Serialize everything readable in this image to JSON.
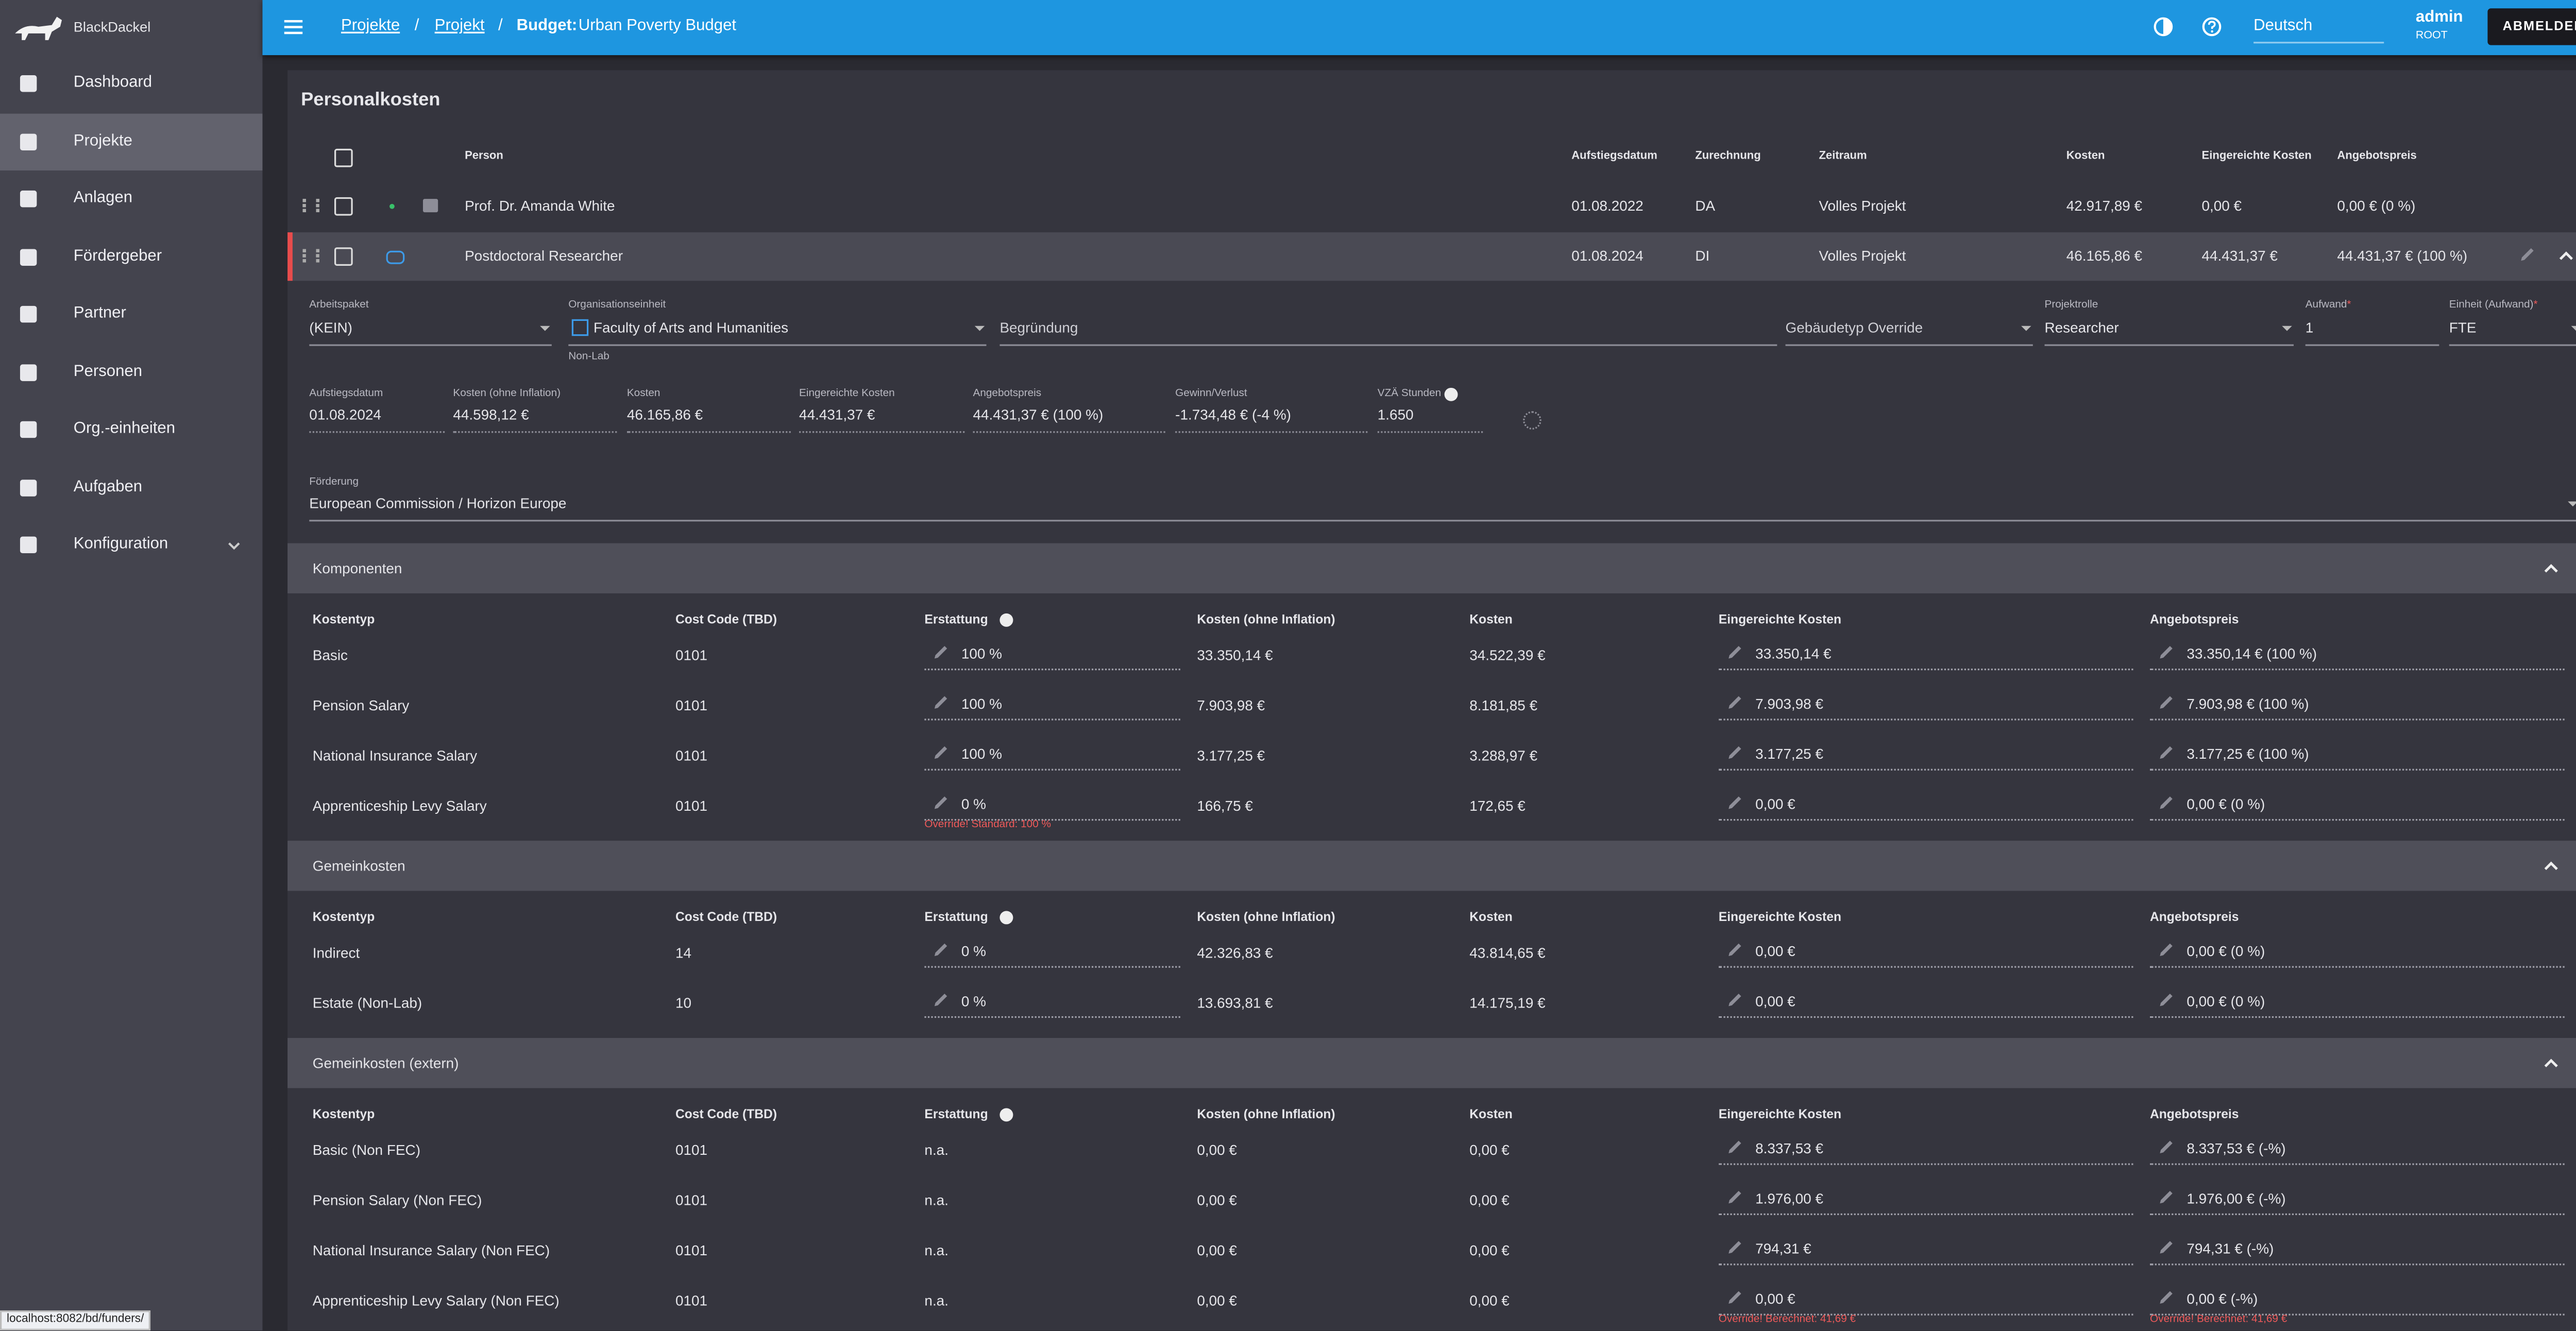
{
  "sidebar": {
    "brand": "BlackDackel",
    "items": [
      "Dashboard",
      "Projekte",
      "Anlagen",
      "Fördergeber",
      "Partner",
      "Personen",
      "Org.-einheiten",
      "Aufgaben",
      "Konfiguration"
    ]
  },
  "topbar": {
    "breadcrumb": [
      "Projekte",
      "Projekt"
    ],
    "separator": "/",
    "budget_label": "Budget:",
    "budget_name": "Urban Poverty Budget",
    "language": "Deutsch",
    "user": "admin",
    "role": "ROOT",
    "logout": "ABMELDEN"
  },
  "section_title": "Personalkosten",
  "table": {
    "headers": [
      "Person",
      "Aufstiegsdatum",
      "Zurechnung",
      "Zeitraum",
      "Kosten",
      "Eingereichte Kosten",
      "Angebotspreis"
    ],
    "rows": [
      [
        "Prof. Dr. Amanda White",
        "01.08.2022",
        "DA",
        "Volles Projekt",
        "42.917,89 €",
        "0,00 €",
        "0,00 € (0 %)"
      ],
      [
        "Postdoctoral Researcher",
        "01.08.2024",
        "DI",
        "Volles Projekt",
        "46.165,86 €",
        "44.431,37 €",
        "44.431,37 € (100 %)"
      ]
    ]
  },
  "detail": {
    "required_mark": "*",
    "fields": [
      {
        "label": "Arbeitspaket",
        "value": "(KEIN)"
      },
      {
        "label": "Organisationseinheit",
        "value": "Faculty of Arts and Humanities",
        "hint": "Non-Lab"
      },
      {
        "placeholder": "Begründung"
      },
      {
        "placeholder": "Gebäudetyp Override"
      },
      {
        "label": "Projektrolle",
        "value": "Researcher"
      },
      {
        "label": "Aufwand",
        "value": "1",
        "required": true
      },
      {
        "label": "Einheit (Aufwand)",
        "value": "FTE",
        "required": true
      }
    ],
    "figures": [
      {
        "label": "Aufstiegsdatum",
        "value": "01.08.2024"
      },
      {
        "label": "Kosten (ohne Inflation)",
        "value": "44.598,12 €"
      },
      {
        "label": "Kosten",
        "value": "46.165,86 €"
      },
      {
        "label": "Eingereichte Kosten",
        "value": "44.431,37 €"
      },
      {
        "label": "Angebotspreis",
        "value": "44.431,37 € (100 %)"
      },
      {
        "label": "Gewinn/Verlust",
        "value": "-1.734,48 € (-4 %)"
      },
      {
        "label": "VZÄ Stunden",
        "value": "1.650"
      }
    ],
    "funding": {
      "label": "Förderung",
      "value": "European Commission / Horizon Europe"
    }
  },
  "groups": [
    {
      "title": "Komponenten",
      "editable": [
        2,
        5,
        6
      ],
      "headers": [
        "Kostentyp",
        "Cost Code (TBD)",
        "Erstattung",
        "Kosten (ohne Inflation)",
        "Kosten",
        "Eingereichte Kosten",
        "Angebotspreis"
      ],
      "rows": [
        [
          "Basic",
          "0101",
          "100 %",
          "33.350,14 €",
          "34.522,39 €",
          "33.350,14 €",
          "33.350,14 € (100 %)"
        ],
        [
          "Pension Salary",
          "0101",
          "100 %",
          "7.903,98 €",
          "8.181,85 €",
          "7.903,98 €",
          "7.903,98 € (100 %)"
        ],
        [
          "National Insurance Salary",
          "0101",
          "100 %",
          "3.177,25 €",
          "3.288,97 €",
          "3.177,25 €",
          "3.177,25 € (100 %)"
        ],
        [
          "Apprenticeship Levy Salary",
          "0101",
          {
            "value": "0 %",
            "note": "Override! Standard: 100 %"
          },
          "166,75 €",
          "172,65 €",
          "0,00 €",
          "0,00 € (0 %)"
        ]
      ]
    },
    {
      "title": "Gemeinkosten",
      "editable": [
        2,
        5,
        6
      ],
      "headers": [
        "Kostentyp",
        "Cost Code (TBD)",
        "Erstattung",
        "Kosten (ohne Inflation)",
        "Kosten",
        "Eingereichte Kosten",
        "Angebotspreis"
      ],
      "rows": [
        [
          "Indirect",
          "14",
          "0 %",
          "42.326,83 €",
          "43.814,65 €",
          "0,00 €",
          "0,00 € (0 %)"
        ],
        [
          "Estate (Non-Lab)",
          "10",
          "0 %",
          "13.693,81 €",
          "14.175,19 €",
          "0,00 €",
          "0,00 € (0 %)"
        ]
      ]
    },
    {
      "title": "Gemeinkosten (extern)",
      "editable": [
        5,
        6
      ],
      "headers": [
        "Kostentyp",
        "Cost Code (TBD)",
        "Erstattung",
        "Kosten (ohne Inflation)",
        "Kosten",
        "Eingereichte Kosten",
        "Angebotspreis"
      ],
      "rows": [
        [
          "Basic (Non FEC)",
          "0101",
          "n.a.",
          "0,00 €",
          "0,00 €",
          "8.337,53 €",
          "8.337,53 € (-%)"
        ],
        [
          "Pension Salary (Non FEC)",
          "0101",
          "n.a.",
          "0,00 €",
          "0,00 €",
          "1.976,00 €",
          "1.976,00 € (-%)"
        ],
        [
          "National Insurance Salary (Non FEC)",
          "0101",
          "n.a.",
          "0,00 €",
          "0,00 €",
          "794,31 €",
          "794,31 € (-%)"
        ],
        [
          "Apprenticeship Levy Salary (Non FEC)",
          "0101",
          "n.a.",
          "0,00 €",
          "0,00 €",
          {
            "value": "0,00 €",
            "note": "Override! Berechnet: 41,69 €"
          },
          {
            "value": "0,00 € (-%)",
            "note": "Override! Berechnet: 41,69 €"
          }
        ]
      ]
    }
  ],
  "status_url": "localhost:8082/bd/funders/"
}
